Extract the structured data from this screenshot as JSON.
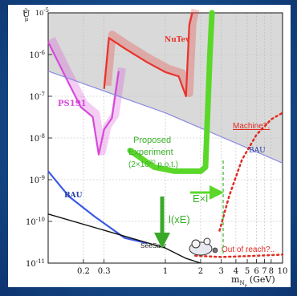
{
  "chart_data": {
    "type": "area",
    "xscale": "log",
    "yscale": "log",
    "xlim": [
      0.1,
      10
    ],
    "ylim": [
      1e-11,
      1e-05
    ],
    "grid": true,
    "ylabel": "U",
    "ylabel_sub": "2",
    "ylabel_sup": "μ",
    "xlabel": "m",
    "xlabel_sub": "N",
    "xlabel_subsub": "μ",
    "xlabel_unit": "(GeV)",
    "x_ticks": [
      {
        "v": 0.2,
        "label": "0.2"
      },
      {
        "v": 0.3,
        "label": "0.3"
      },
      {
        "v": 1,
        "label": "1"
      },
      {
        "v": 2,
        "label": "2"
      },
      {
        "v": 3,
        "label": "3"
      },
      {
        "v": 4,
        "label": "4"
      },
      {
        "v": 5,
        "label": "5"
      },
      {
        "v": 6,
        "label": "6"
      },
      {
        "v": 7,
        "label": "7"
      },
      {
        "v": 8,
        "label": "8"
      },
      {
        "v": 10,
        "label": "10"
      }
    ],
    "y_ticks": [
      {
        "v": 1e-06,
        "base": "10",
        "exp": "-6"
      },
      {
        "v": 1e-07,
        "base": "10",
        "exp": "-7"
      },
      {
        "v": 1e-08,
        "base": "10",
        "exp": "-8"
      },
      {
        "v": 1e-09,
        "base": "10",
        "exp": "-9"
      },
      {
        "v": 1e-10,
        "base": "10",
        "exp": "-10"
      },
      {
        "v": 1e-11,
        "base": "10",
        "exp": "-11"
      }
    ],
    "y_top_label": {
      "base": "10",
      "exp": "-5"
    },
    "series": [
      {
        "name": "NuTev",
        "color": "#e8342c",
        "points": [
          [
            0.3,
            1.5e-07
          ],
          [
            0.33,
            2.5e-06
          ],
          [
            0.45,
            1.4e-06
          ],
          [
            0.7,
            6.5e-07
          ],
          [
            1.0,
            3.8e-07
          ],
          [
            1.3,
            3e-07
          ],
          [
            1.5,
            1e-07
          ],
          [
            1.6,
            5e-06
          ],
          [
            1.7,
            1e-05
          ]
        ]
      },
      {
        "name": "PS191",
        "color": "#d64ad8",
        "points": [
          [
            0.1,
            2e-06
          ],
          [
            0.14,
            3e-07
          ],
          [
            0.19,
            5.5e-08
          ],
          [
            0.24,
            3.2e-08
          ],
          [
            0.27,
            4e-09
          ],
          [
            0.3,
            1.6e-08
          ],
          [
            0.35,
            3e-08
          ],
          [
            0.4,
            4e-07
          ]
        ]
      },
      {
        "name": "BAU",
        "color": "#8a8ae0",
        "points": [
          [
            0.1,
            4e-07
          ],
          [
            1,
            4e-08
          ],
          [
            10,
            2.5e-09
          ]
        ]
      },
      {
        "name": "BAU",
        "color": "#3c5ae6",
        "points": [
          [
            0.1,
            1.6e-09
          ],
          [
            0.15,
            4e-10
          ],
          [
            0.25,
            1.3e-10
          ],
          [
            0.45,
            4e-11
          ],
          [
            0.7,
            3e-11
          ]
        ]
      },
      {
        "name": "SeeSaw",
        "color": "#111111",
        "points": [
          [
            0.1,
            1.5e-10
          ],
          [
            1,
            2.3e-11
          ],
          [
            1.5,
            1.3e-11
          ],
          [
            2,
            1e-11
          ]
        ]
      },
      {
        "name": "Proposed Experiment",
        "color": "#5bd72a",
        "points": [
          [
            0.5,
            5e-09
          ],
          [
            0.8,
            2e-09
          ],
          [
            1.2,
            1.6e-09
          ],
          [
            2.0,
            1.6e-09
          ],
          [
            2.2,
            2e-09
          ],
          [
            2.4,
            1e-06
          ],
          [
            2.5,
            1e-05
          ]
        ]
      },
      {
        "name": "Machine?.",
        "color": "#e02b20",
        "points": [
          [
            2.9,
            6e-11
          ],
          [
            3.5,
            4e-10
          ],
          [
            4.5,
            3e-09
          ],
          [
            6,
            1.2e-08
          ],
          [
            8,
            2.8e-08
          ],
          [
            10,
            4e-08
          ]
        ]
      },
      {
        "name": "Out of reach?..",
        "color": "#e02b20",
        "points": [
          [
            1.8,
            1.5e-11
          ],
          [
            3,
            1.4e-11
          ],
          [
            6,
            1.5e-11
          ],
          [
            10,
            1.6e-11
          ]
        ]
      }
    ],
    "annotations": {
      "nutev": "NuTev",
      "ps191": "PS191",
      "bau_upper": "BAU",
      "bau_lower": "BAU",
      "seesaw": "SeeSaw",
      "proposed_line1": "Proposed",
      "proposed_line2": "Experiment",
      "proposed_line3_pre": "(2×10",
      "proposed_line3_sup": "20",
      "proposed_line3_post": " p.o.t.)",
      "exl": "E×l",
      "ixe": "l(xE)",
      "machine": "Machine?.",
      "out_of_reach": "Out of reach?.."
    },
    "colors": {
      "excluded_fill": "#d9d9d9",
      "nutev": "#e8342c",
      "ps191": "#d64ad8",
      "bau_upper": "#8a8ae0",
      "bau_lower": "#3c5ae6",
      "proposed": "#5bd72a",
      "machine": "#e02b20"
    }
  }
}
